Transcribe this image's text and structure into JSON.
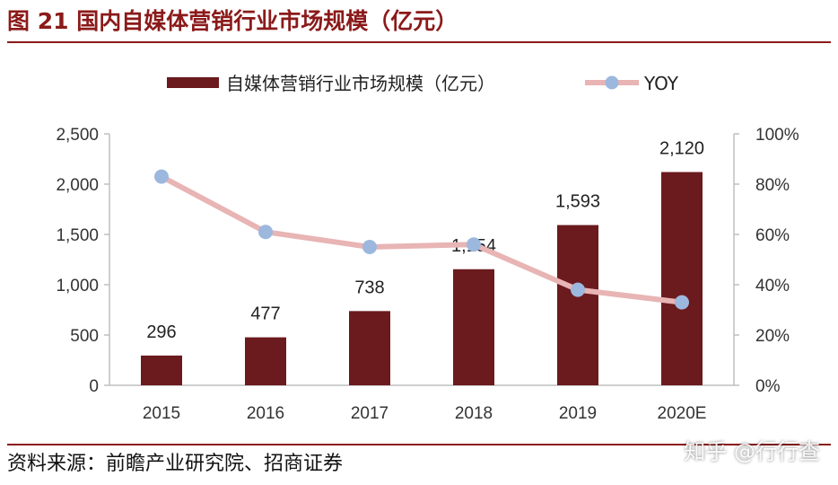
{
  "header": {
    "title": "图 21 国内自媒体营销行业市场规模（亿元）"
  },
  "footer": {
    "source": "资料来源：前瞻产业研究院、招商证券",
    "watermark": "知乎 @行行查"
  },
  "colors": {
    "accent": "#8B1A1A",
    "bar": "#6B1A1E",
    "yoy_line": "#E8B4B4",
    "yoy_marker": "#9DB8DE"
  },
  "chart_data": {
    "type": "bar",
    "categories": [
      "2015",
      "2016",
      "2017",
      "2018",
      "2019",
      "2020E"
    ],
    "series": [
      {
        "name": "自媒体营销行业市场规模（亿元）",
        "type": "bar",
        "axis": "left",
        "values": [
          296,
          477,
          738,
          1154,
          1593,
          2120
        ],
        "labels": [
          "296",
          "477",
          "738",
          "1,154",
          "1,593",
          "2,120"
        ]
      },
      {
        "name": "YOY",
        "type": "line",
        "axis": "right",
        "values": [
          83,
          61,
          55,
          56,
          38,
          33
        ]
      }
    ],
    "y_left": {
      "lim": [
        0,
        2500
      ],
      "ticks": [
        0,
        500,
        1000,
        1500,
        2000,
        2500
      ],
      "tick_labels": [
        "0",
        "500",
        "1,000",
        "1,500",
        "2,000",
        "2,500"
      ]
    },
    "y_right": {
      "lim": [
        0,
        100
      ],
      "ticks": [
        0,
        20,
        40,
        60,
        80,
        100
      ],
      "tick_labels": [
        "0%",
        "20%",
        "40%",
        "60%",
        "80%",
        "100%"
      ]
    },
    "grid": false,
    "legend_position": "top"
  }
}
